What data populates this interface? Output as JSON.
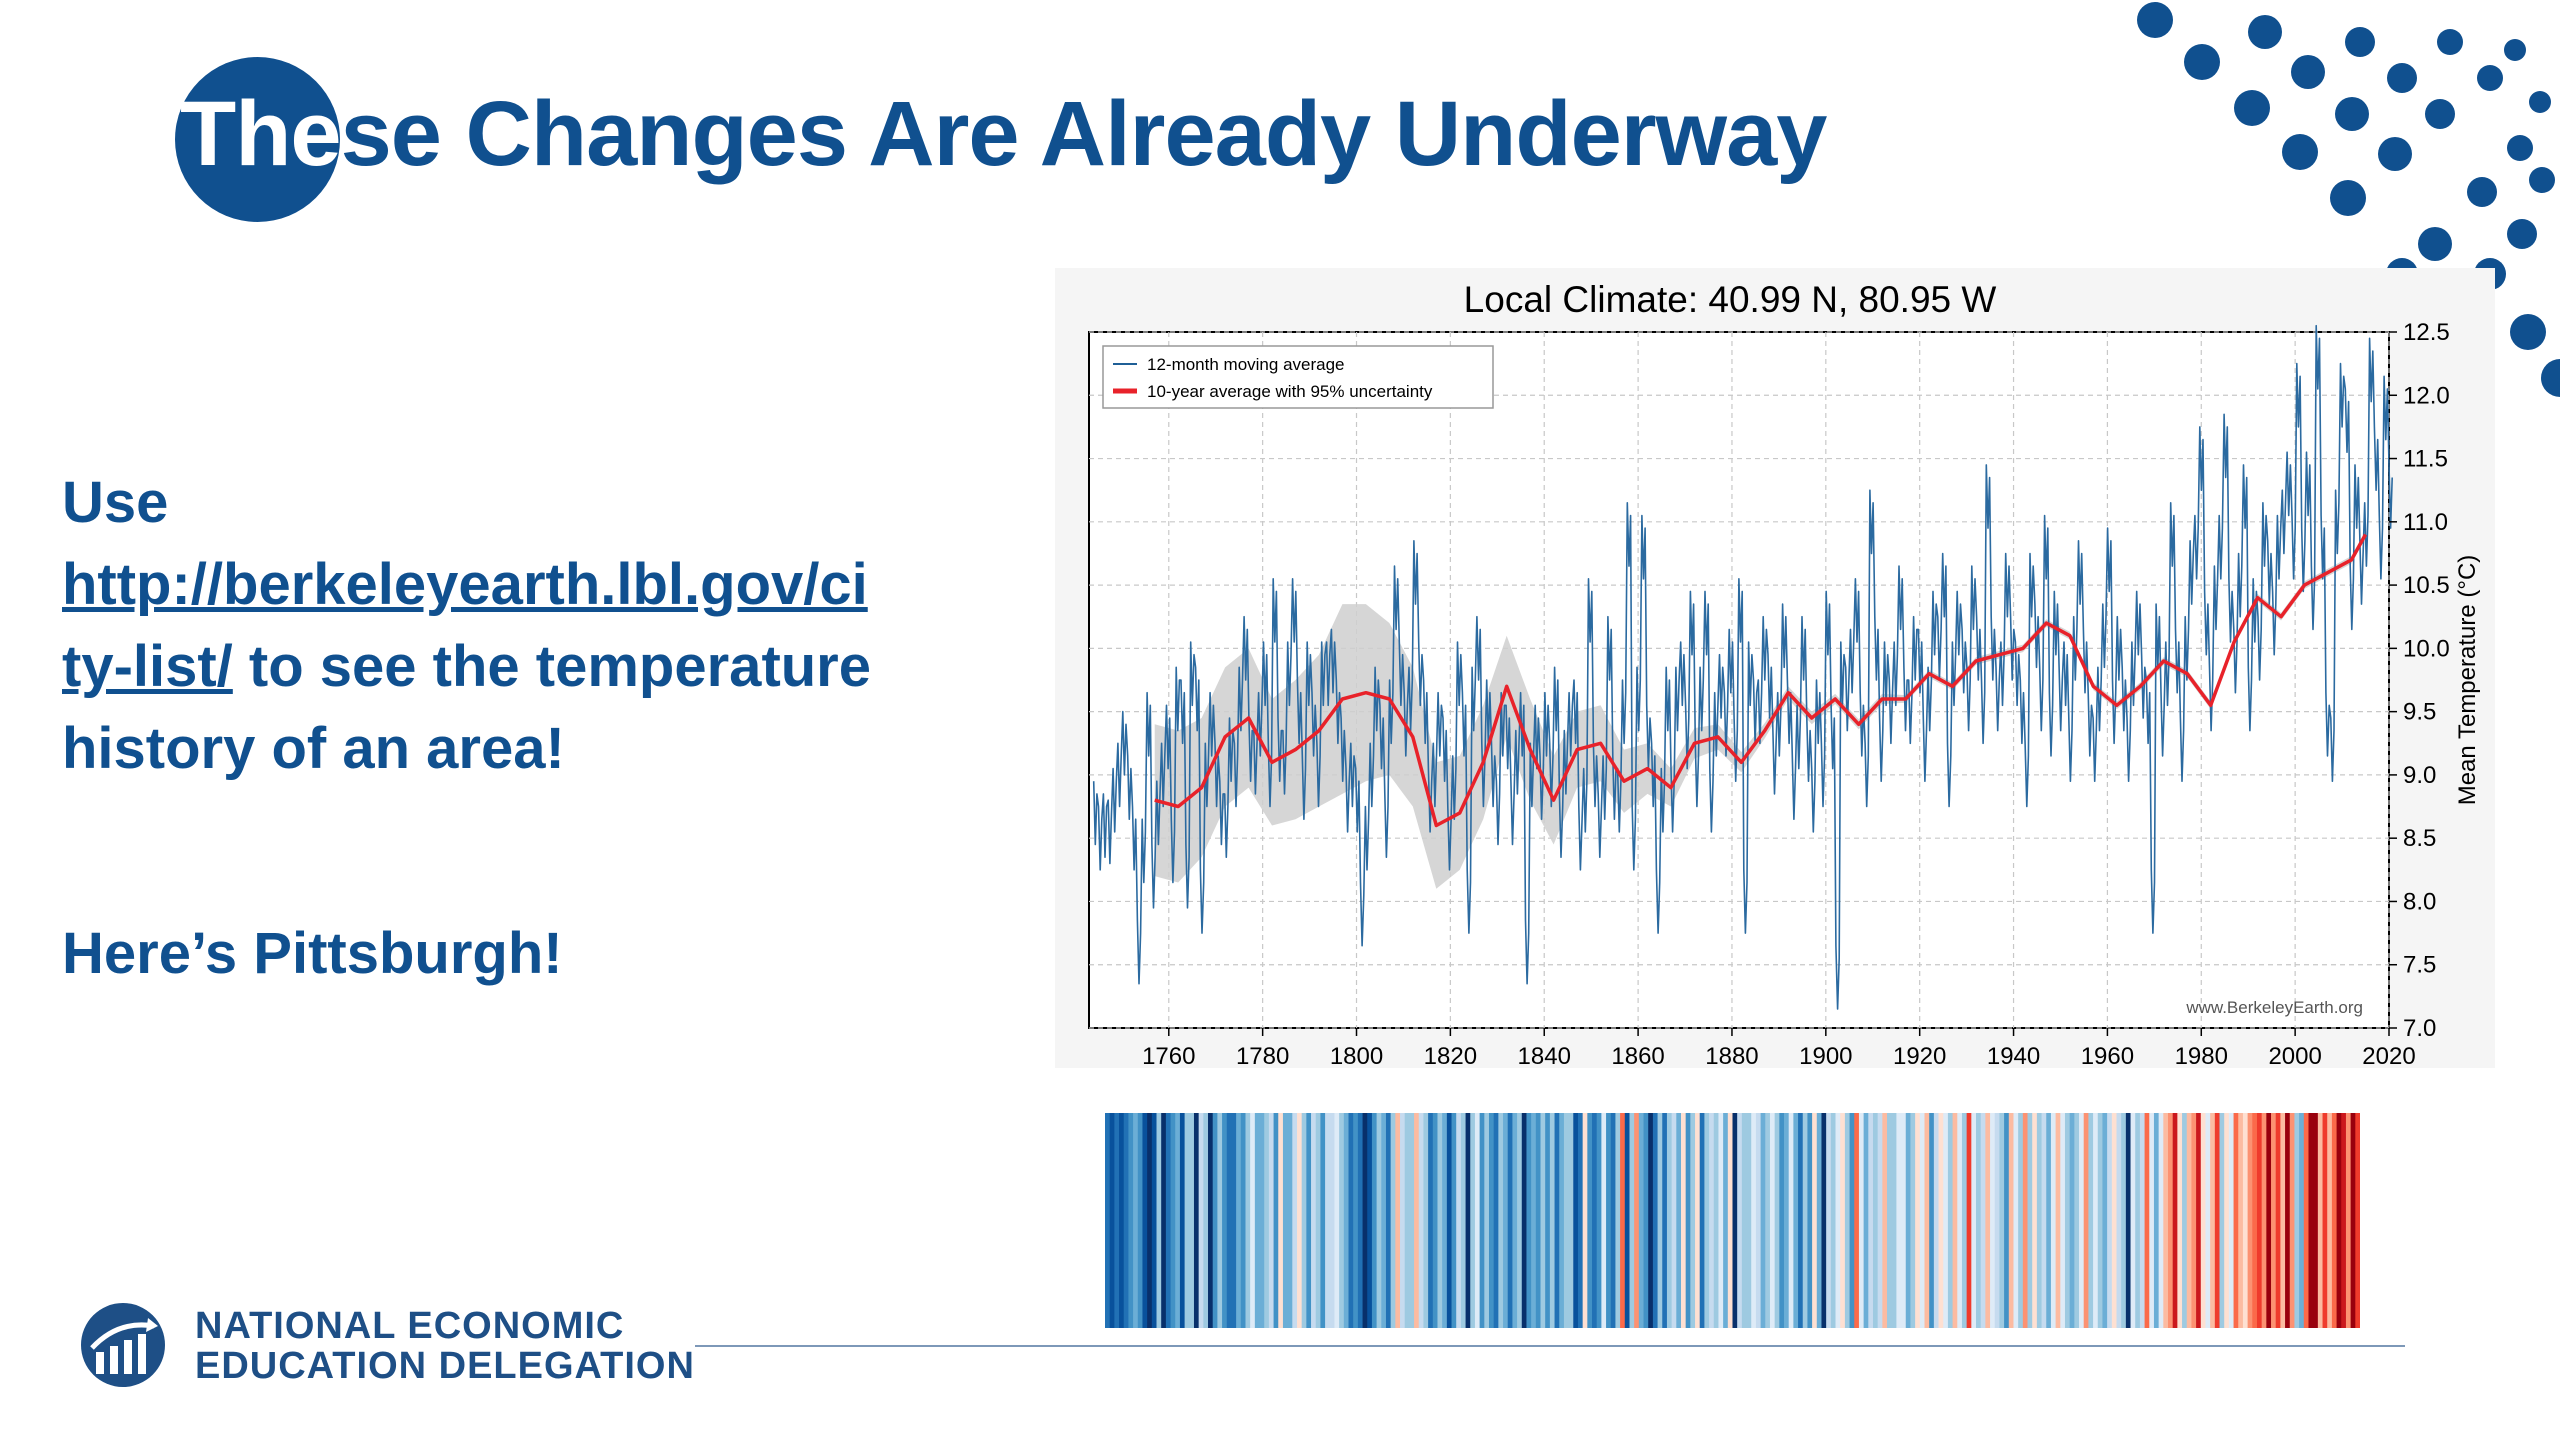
{
  "title": {
    "highlight": "The",
    "rest": "se Changes Are Already Underway"
  },
  "body": {
    "prefix": "Use",
    "link_line1": "http://berkeleyearth.lbl.gov/ci",
    "link_line2": "ty-list/",
    "suffix": " to see the temperature history of an area!",
    "pittsburgh": "Here’s Pittsburgh!"
  },
  "logo": {
    "line1": "NATIONAL ECONOMIC",
    "line2": "EDUCATION DELEGATION"
  },
  "colors": {
    "brand": "#10508f",
    "series_blue": "#1f5f96",
    "series_red": "#e8222a",
    "band": "#cfcfcf"
  },
  "chart_data": {
    "type": "line",
    "title": "Local Climate: 40.99 N, 80.95 W",
    "xlabel": "",
    "ylabel": "Mean Temperature (°C)",
    "xlim": [
      1743,
      2020
    ],
    "ylim": [
      7.0,
      12.5
    ],
    "xticks": [
      "1760",
      "1780",
      "1800",
      "1820",
      "1840",
      "1860",
      "1880",
      "1900",
      "1920",
      "1940",
      "1960",
      "1980",
      "2000",
      "2020"
    ],
    "yticks": [
      "12.5",
      "12.0",
      "11.5",
      "11.0",
      "10.5",
      "10.0",
      "9.5",
      "9.0",
      "8.5",
      "8.0",
      "7.5",
      "7.0"
    ],
    "grid": true,
    "legend": {
      "position": "top-left",
      "entries": [
        "12-month moving average",
        "10-year average with 95% uncertainty"
      ]
    },
    "watermark": "www.BerkeleyEarth.org",
    "series": [
      {
        "name": "10-year average with 95% uncertainty",
        "x": [
          1757,
          1762,
          1767,
          1772,
          1777,
          1782,
          1787,
          1792,
          1797,
          1802,
          1807,
          1812,
          1817,
          1822,
          1827,
          1832,
          1837,
          1842,
          1847,
          1852,
          1857,
          1862,
          1867,
          1872,
          1877,
          1882,
          1887,
          1892,
          1897,
          1902,
          1907,
          1912,
          1917,
          1922,
          1927,
          1932,
          1937,
          1942,
          1947,
          1952,
          1957,
          1962,
          1967,
          1972,
          1977,
          1982,
          1987,
          1992,
          1997,
          2002,
          2007,
          2012,
          2015
        ],
        "y": [
          8.8,
          8.75,
          8.9,
          9.3,
          9.45,
          9.1,
          9.2,
          9.35,
          9.6,
          9.65,
          9.6,
          9.3,
          8.6,
          8.7,
          9.1,
          9.7,
          9.2,
          8.8,
          9.2,
          9.25,
          8.95,
          9.05,
          8.9,
          9.25,
          9.3,
          9.1,
          9.35,
          9.65,
          9.45,
          9.6,
          9.4,
          9.6,
          9.6,
          9.8,
          9.7,
          9.9,
          9.95,
          10.0,
          10.2,
          10.1,
          9.7,
          9.55,
          9.7,
          9.9,
          9.8,
          9.55,
          10.05,
          10.4,
          10.25,
          10.5,
          10.6,
          10.7,
          10.9
        ],
        "uncertainty": [
          0.6,
          0.6,
          0.55,
          0.55,
          0.55,
          0.5,
          0.55,
          0.6,
          0.75,
          0.7,
          0.6,
          0.55,
          0.5,
          0.45,
          0.45,
          0.4,
          0.4,
          0.35,
          0.3,
          0.3,
          0.25,
          0.2,
          0.15,
          0.12,
          0.1,
          0.08,
          0.06,
          0.05,
          0.05,
          0.04,
          0.04,
          0.04,
          0.03,
          0.03,
          0.03,
          0.03,
          0.03,
          0.03,
          0.03,
          0.03,
          0.03,
          0.03,
          0.03,
          0.03,
          0.03,
          0.03,
          0.03,
          0.03,
          0.03,
          0.03,
          0.03,
          0.03,
          0.03
        ]
      },
      {
        "name": "12-month moving average",
        "x_start": 1744,
        "x_end": 2020,
        "values": [
          8.7,
          8.5,
          8.6,
          8.55,
          8.8,
          9.0,
          9.25,
          8.9,
          8.5,
          7.6,
          8.4,
          9.4,
          8.2,
          8.7,
          9.0,
          9.3,
          8.4,
          9.6,
          9.5,
          8.2,
          9.8,
          9.6,
          8.0,
          9.0,
          9.4,
          9.0,
          8.7,
          8.6,
          9.2,
          9.0,
          9.6,
          10.0,
          9.2,
          9.1,
          9.4,
          9.8,
          9.0,
          10.3,
          9.2,
          9.1,
          9.8,
          10.3,
          9.5,
          8.9,
          9.8,
          9.4,
          9.0,
          9.8,
          9.8,
          9.9,
          9.5,
          9.2,
          8.8,
          9.0,
          8.8,
          7.9,
          8.5,
          9.0,
          9.6,
          9.3,
          8.6,
          9.5,
          10.4,
          9.8,
          9.4,
          9.6,
          10.6,
          9.8,
          9.5,
          8.8,
          9.0,
          9.4,
          9.2,
          8.5,
          8.9,
          9.8,
          9.4,
          8.0,
          9.6,
          10.0,
          9.0,
          9.5,
          9.0,
          8.7,
          9.4,
          9.3,
          8.7,
          9.1,
          9.4,
          7.6,
          9.0,
          9.3,
          8.9,
          9.4,
          9.0,
          9.6,
          8.6,
          9.1,
          9.4,
          9.5,
          8.5,
          8.8,
          10.3,
          9.0,
          8.6,
          8.9,
          10.0,
          8.9,
          8.8,
          9.5,
          10.9,
          8.5,
          9.6,
          10.8,
          9.3,
          9.0,
          8.0,
          8.8,
          9.6,
          8.8,
          9.6,
          9.8,
          9.3,
          10.2,
          9.0,
          9.6,
          10.2,
          8.8,
          9.4,
          9.7,
          9.4,
          9.9,
          9.2,
          10.3,
          8.0,
          9.8,
          9.5,
          9.5,
          10.0,
          9.7,
          9.1,
          9.4,
          10.1,
          9.5,
          8.9,
          9.3,
          10.0,
          9.2,
          8.8,
          9.5,
          9.0,
          10.2,
          9.3,
          7.4,
          9.8,
          9.6,
          9.9,
          10.3,
          9.4,
          9.0,
          11.0,
          10.0,
          9.2,
          9.8,
          9.5,
          9.8,
          10.4,
          9.6,
          9.5,
          10.0,
          9.9,
          9.2,
          9.6,
          10.2,
          10.0,
          10.5,
          9.0,
          9.8,
          10.2,
          9.9,
          9.6,
          10.4,
          10.0,
          9.5,
          11.2,
          10.0,
          9.6,
          9.8,
          10.5,
          10.0,
          9.8,
          9.5,
          9.0,
          10.5,
          10.1,
          9.6,
          10.8,
          9.4,
          10.2,
          9.6,
          9.8,
          9.2,
          10.0,
          10.6,
          9.9,
          9.4,
          9.2,
          9.6,
          10.1,
          10.7,
          9.5,
          10.0,
          9.6,
          9.2,
          9.8,
          10.2,
          9.7,
          9.5,
          8.0,
          10.1,
          9.4,
          9.8,
          10.9,
          9.9,
          9.2,
          10.0,
          10.6,
          10.8,
          11.5,
          10.2,
          9.6,
          10.4,
          10.8,
          11.6,
          10.3,
          9.9,
          10.5,
          11.2,
          9.6,
          10.3,
          10.0,
          10.9,
          10.6,
          10.2,
          10.8,
          11.0,
          11.3,
          10.8,
          12.0,
          10.7,
          11.3,
          10.4,
          12.3,
          10.8,
          9.4,
          9.2,
          11.0,
          12.0,
          11.8,
          10.4,
          11.2,
          10.6,
          10.9,
          12.2,
          11.5,
          10.8,
          11.9,
          11.2
        ]
      }
    ]
  }
}
